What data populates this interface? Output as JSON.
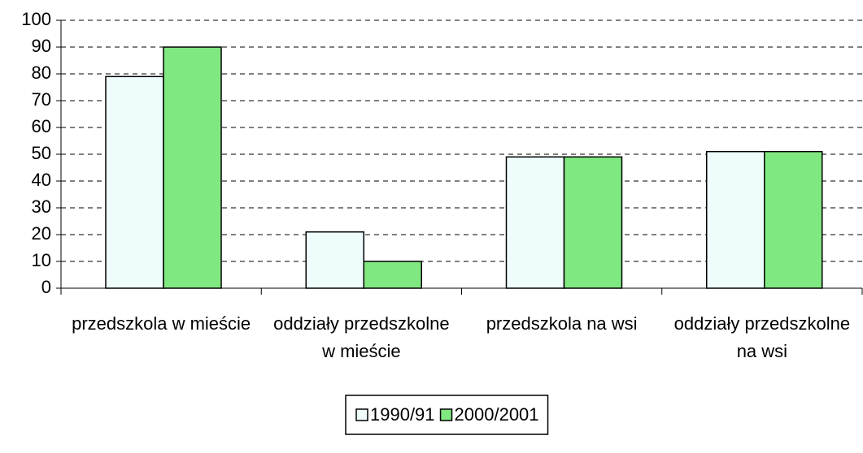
{
  "chart_data": {
    "type": "bar",
    "categories": [
      "przedszkola w mieście",
      "oddziały przedszkolne w mieście",
      "przedszkola na wsi",
      "oddziały przedszkolne na wsi"
    ],
    "series": [
      {
        "name": "1990/91",
        "color": "#eefcfc",
        "values": [
          79,
          21,
          49,
          51
        ]
      },
      {
        "name": "2000/2001",
        "color": "#80e880",
        "values": [
          90,
          10,
          49,
          51
        ]
      }
    ],
    "ylim": [
      0,
      100
    ],
    "yticks": [
      0,
      10,
      20,
      30,
      40,
      50,
      60,
      70,
      80,
      90,
      100
    ],
    "grid": true,
    "legend": "bottom"
  }
}
